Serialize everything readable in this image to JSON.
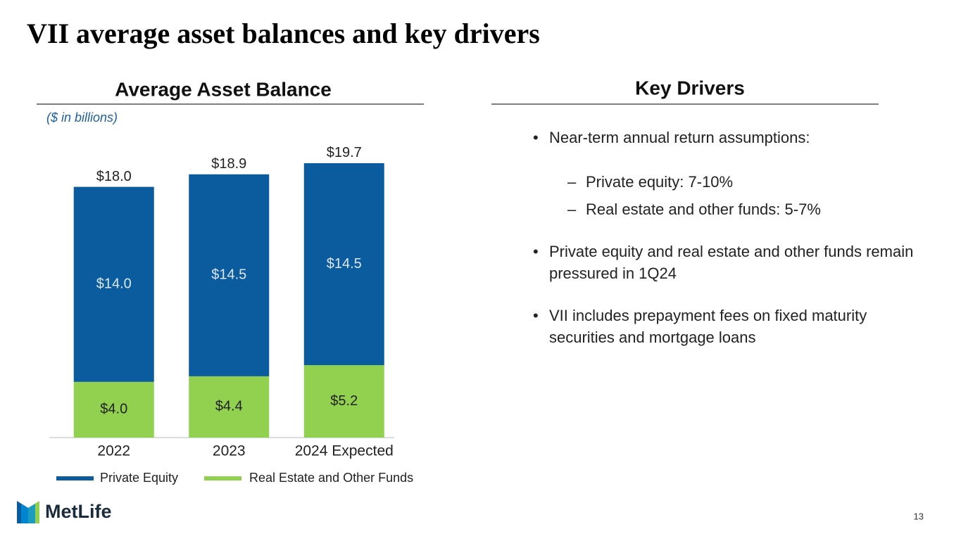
{
  "title": "VII average asset balances and key drivers",
  "chart_data": {
    "type": "stacked_bar",
    "title": "Average Asset Balance",
    "subtitle": "($ in billions)",
    "categories": [
      "2022",
      "2023",
      "2024 Expected"
    ],
    "series": [
      {
        "name": "Real Estate and Other Funds",
        "color": "#92d050",
        "values": [
          4.0,
          4.4,
          5.2
        ],
        "value_labels": [
          "$4.0",
          "$4.4",
          "$5.2"
        ]
      },
      {
        "name": "Private Equity",
        "color": "#0b5c9e",
        "values": [
          14.0,
          14.5,
          14.5
        ],
        "value_labels": [
          "$14.0",
          "$14.5",
          "$14.5"
        ]
      }
    ],
    "totals": [
      18.0,
      18.9,
      19.7
    ],
    "total_labels": [
      "$18.0",
      "$18.9",
      "$19.7"
    ],
    "ylim": [
      0,
      20
    ]
  },
  "key_drivers": {
    "title": "Key Drivers",
    "bullets": [
      {
        "text": "Near-term annual return assumptions:",
        "sub": [
          "Private equity: 7-10%",
          "Real estate and other funds: 5-7%"
        ]
      },
      {
        "text": "Private equity and real estate and other funds remain pressured in 1Q24",
        "sub": []
      },
      {
        "text": "VII includes prepayment fees on fixed maturity securities and mortgage loans",
        "sub": []
      }
    ]
  },
  "logo": "MetLife",
  "page_number": "13"
}
